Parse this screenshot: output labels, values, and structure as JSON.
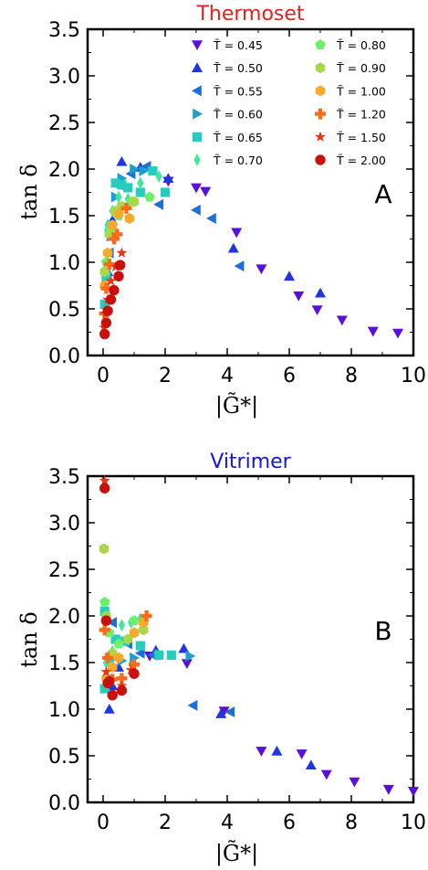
{
  "legend_entries": [
    {
      "label": "T̃ = 0.45",
      "marker": "tri-down",
      "color": "#5a10d6"
    },
    {
      "label": "T̃ = 0.50",
      "marker": "tri-up",
      "color": "#2236e0"
    },
    {
      "label": "T̃ = 0.55",
      "marker": "tri-left",
      "color": "#1e6fd8"
    },
    {
      "label": "T̃ = 0.60",
      "marker": "tri-right",
      "color": "#1a9fd0"
    },
    {
      "label": "T̃ = 0.65",
      "marker": "square",
      "color": "#26cdbf"
    },
    {
      "label": "T̃ = 0.70",
      "marker": "diamond",
      "color": "#3ee89a"
    },
    {
      "label": "T̃ = 0.80",
      "marker": "pentagon",
      "color": "#6cf06a"
    },
    {
      "label": "T̃ = 0.90",
      "marker": "hexagon",
      "color": "#a8d84a"
    },
    {
      "label": "T̃ = 1.00",
      "marker": "hexagon",
      "color": "#f6a92a"
    },
    {
      "label": "T̃ = 1.20",
      "marker": "plus",
      "color": "#fb6a16"
    },
    {
      "label": "T̃ = 1.50",
      "marker": "star",
      "color": "#ec3212"
    },
    {
      "label": "T̃ = 2.00",
      "marker": "circle",
      "color": "#c8100c"
    }
  ],
  "chart_data": [
    {
      "type": "scatter",
      "title": "Thermoset",
      "title_color": "#e8201a",
      "panel_label": "A",
      "xlabel": "|G̃*|",
      "ylabel": "tan δ",
      "xlim": [
        -0.5,
        10
      ],
      "ylim": [
        0,
        3.5
      ],
      "xticks": [
        0,
        2,
        4,
        6,
        8,
        10
      ],
      "yticks": [
        0.0,
        0.5,
        1.0,
        1.5,
        2.0,
        2.5,
        3.0,
        3.5
      ],
      "ytick_labels": [
        "0.0",
        "0.5",
        "1.0",
        "1.5",
        "2.0",
        "2.5",
        "3.0",
        "3.5"
      ],
      "grid": false,
      "legend_position": "upper-right",
      "series": [
        {
          "name": "T̃ = 0.45",
          "x": [
            9.5,
            8.7,
            7.7,
            6.9,
            6.3,
            5.1,
            4.3,
            3.3,
            3.0,
            2.1
          ],
          "y": [
            0.24,
            0.26,
            0.38,
            0.49,
            0.64,
            0.93,
            1.32,
            1.76,
            1.8,
            1.87
          ]
        },
        {
          "name": "T̃ = 0.50",
          "x": [
            7.0,
            6.0,
            4.2,
            2.1,
            1.2,
            0.6,
            0.3,
            0.15
          ],
          "y": [
            0.67,
            0.85,
            1.15,
            1.9,
            2.02,
            2.08,
            1.45,
            0.9
          ]
        },
        {
          "name": "T̃ = 0.55",
          "x": [
            4.4,
            3.5,
            3.0,
            1.8,
            1.4,
            0.9,
            0.5,
            0.2
          ],
          "y": [
            0.96,
            1.47,
            1.56,
            1.62,
            2.03,
            1.95,
            1.83,
            1.1
          ]
        },
        {
          "name": "T̃ = 0.60",
          "x": [
            1.3,
            1.0,
            0.6,
            0.4,
            0.25,
            0.1
          ],
          "y": [
            1.98,
            2.0,
            1.9,
            1.7,
            1.28,
            0.82
          ]
        },
        {
          "name": "T̃ = 0.65",
          "x": [
            2.0,
            1.6,
            1.2,
            0.8,
            0.6,
            0.4,
            0.2,
            0.1,
            0.05
          ],
          "y": [
            1.75,
            1.98,
            1.75,
            1.8,
            1.83,
            1.85,
            1.32,
            0.85,
            0.55
          ]
        },
        {
          "name": "T̃ = 0.70",
          "x": [
            1.8,
            1.2,
            0.8,
            0.5,
            0.3,
            0.15,
            0.05
          ],
          "y": [
            1.92,
            1.85,
            1.68,
            1.7,
            1.55,
            1.4,
            0.75
          ]
        },
        {
          "name": "T̃ = 0.80",
          "x": [
            1.5,
            0.9,
            0.5,
            0.25,
            0.1
          ],
          "y": [
            1.7,
            1.65,
            1.5,
            1.35,
            1.0
          ]
        },
        {
          "name": "T̃ = 0.90",
          "x": [
            1.0,
            0.6,
            0.4,
            0.2,
            0.05
          ],
          "y": [
            1.65,
            1.6,
            1.55,
            1.3,
            0.9
          ]
        },
        {
          "name": "T̃ = 1.00",
          "x": [
            0.85,
            0.5,
            0.3,
            0.15,
            0.05
          ],
          "y": [
            1.47,
            1.52,
            1.4,
            1.1,
            0.75
          ]
        },
        {
          "name": "T̃ = 1.20",
          "x": [
            0.75,
            0.45,
            0.35,
            0.2,
            0.1,
            0.05
          ],
          "y": [
            1.58,
            1.3,
            1.25,
            0.98,
            0.72,
            0.45
          ]
        },
        {
          "name": "T̃ = 1.50",
          "x": [
            0.6,
            0.4,
            0.25,
            0.15,
            0.08,
            0.03
          ],
          "y": [
            1.1,
            0.95,
            0.8,
            0.6,
            0.45,
            0.3
          ]
        },
        {
          "name": "T̃ = 2.00",
          "x": [
            0.55,
            0.5,
            0.35,
            0.25,
            0.15,
            0.1,
            0.05
          ],
          "y": [
            0.97,
            0.85,
            0.7,
            0.6,
            0.48,
            0.35,
            0.23
          ]
        }
      ]
    },
    {
      "type": "scatter",
      "title": "Vitrimer",
      "title_color": "#1414e6",
      "panel_label": "B",
      "xlabel": "|G̃*|",
      "ylabel": "tan δ",
      "xlim": [
        -0.5,
        10
      ],
      "ylim": [
        0,
        3.5
      ],
      "xticks": [
        0,
        2,
        4,
        6,
        8,
        10
      ],
      "yticks": [
        0.0,
        0.5,
        1.0,
        1.5,
        2.0,
        2.5,
        3.0,
        3.5
      ],
      "ytick_labels": [
        "0.0",
        "0.5",
        "1.0",
        "1.5",
        "2.0",
        "2.5",
        "3.0",
        "3.5"
      ],
      "grid": false,
      "legend_position": "none",
      "series": [
        {
          "name": "T̃ = 0.45",
          "x": [
            10.0,
            9.2,
            8.1,
            7.2,
            6.4,
            5.1,
            3.9,
            2.7,
            1.5
          ],
          "y": [
            0.12,
            0.14,
            0.22,
            0.3,
            0.52,
            0.55,
            0.98,
            1.49,
            1.57
          ]
        },
        {
          "name": "T̃ = 0.50",
          "x": [
            6.7,
            5.6,
            3.8,
            2.6,
            1.7,
            0.5,
            0.3,
            0.2
          ],
          "y": [
            0.4,
            0.55,
            0.95,
            1.65,
            1.63,
            1.45,
            1.25,
            1.0
          ]
        },
        {
          "name": "T̃ = 0.55",
          "x": [
            4.1,
            2.9,
            1.6,
            1.2,
            0.8,
            0.3
          ],
          "y": [
            0.97,
            1.04,
            1.58,
            1.6,
            1.7,
            1.93
          ]
        },
        {
          "name": "T̃ = 0.60",
          "x": [
            2.8,
            1.8,
            1.0,
            0.6
          ],
          "y": [
            1.57,
            1.59,
            1.55,
            1.52
          ]
        },
        {
          "name": "T̃ = 0.65",
          "x": [
            2.2,
            1.8,
            1.2,
            0.7,
            0.4,
            0.2,
            0.05,
            0.05
          ],
          "y": [
            1.58,
            1.58,
            1.68,
            1.73,
            1.75,
            1.55,
            2.05,
            1.22
          ]
        },
        {
          "name": "T̃ = 0.70",
          "x": [
            1.2,
            0.9,
            0.6,
            0.3,
            0.1
          ],
          "y": [
            1.97,
            1.93,
            1.9,
            1.62,
            1.5
          ]
        },
        {
          "name": "T̃ = 0.80",
          "x": [
            1.0,
            0.5,
            0.2,
            0.05
          ],
          "y": [
            1.95,
            1.7,
            1.82,
            2.15
          ]
        },
        {
          "name": "T̃ = 0.90",
          "x": [
            1.3,
            0.8,
            0.3,
            0.1,
            0.03
          ],
          "y": [
            1.85,
            1.75,
            1.6,
            2.0,
            2.72
          ]
        },
        {
          "name": "T̃ = 1.00",
          "x": [
            1.3,
            1.0,
            0.5,
            0.3,
            0.1
          ],
          "y": [
            1.93,
            1.82,
            1.55,
            1.45,
            1.33
          ]
        },
        {
          "name": "T̃ = 1.20",
          "x": [
            1.4,
            1.0,
            0.6,
            0.3,
            0.15,
            0.05
          ],
          "y": [
            2.0,
            1.48,
            1.33,
            1.32,
            1.55,
            1.85
          ]
        },
        {
          "name": "T̃ = 1.50",
          "x": [
            0.9,
            0.6,
            0.3,
            0.1,
            0.05
          ],
          "y": [
            1.42,
            1.25,
            1.15,
            1.4,
            3.45
          ]
        },
        {
          "name": "T̃ = 2.00",
          "x": [
            1.0,
            0.6,
            0.3,
            0.2,
            0.15,
            0.1,
            0.05
          ],
          "y": [
            1.38,
            1.2,
            1.15,
            1.3,
            1.28,
            1.95,
            3.37
          ]
        }
      ]
    }
  ]
}
